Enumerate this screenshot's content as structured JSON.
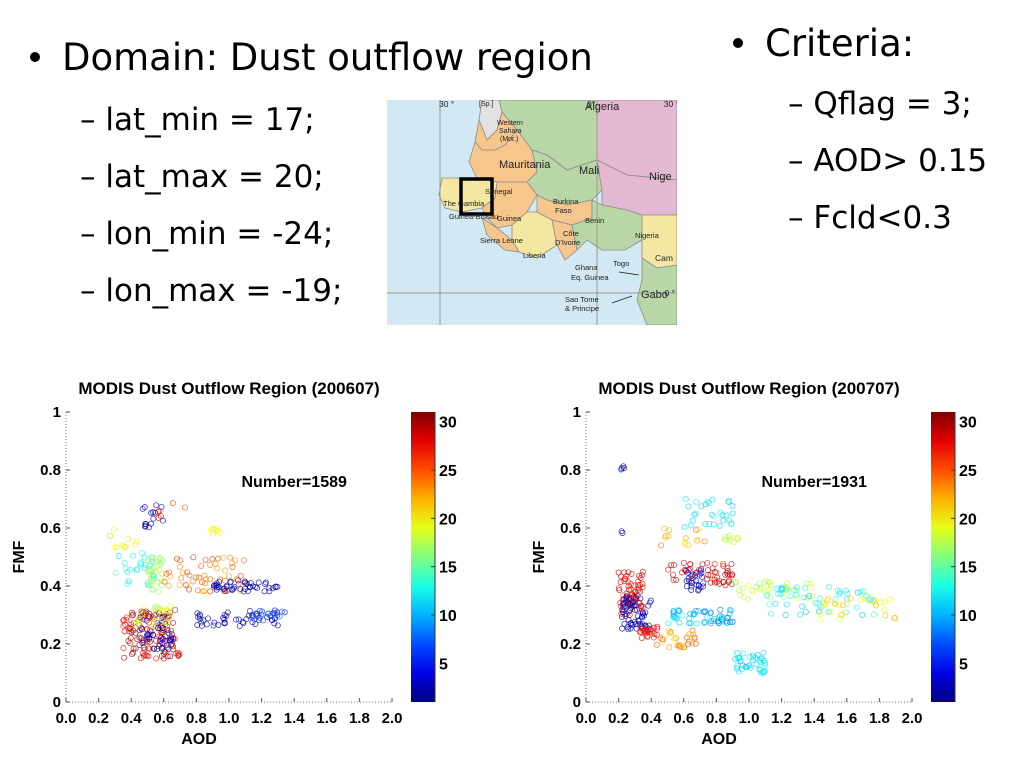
{
  "slide": {
    "domain_header": "Domain: Dust outflow region",
    "domain_items": [
      "lat_min = 17;",
      "lat_max = 20;",
      "lon_min = -24;",
      "lon_max = -19;"
    ],
    "criteria_header": "Criteria:",
    "criteria_items": [
      "Qflag = 3;",
      "AOD> 0.15",
      "Fcld<0.3"
    ],
    "dash": "–"
  },
  "map": {
    "lon_labels": [
      "30 °",
      "0°",
      "30 °",
      "0 °"
    ],
    "labels": [
      "[Sp.]",
      "Algeria",
      "Western",
      "Sahara",
      "(Mor.)",
      "Mauritania",
      "Mali",
      "Nige",
      "Senegal",
      "The Gambia",
      "Guinea-Bissau",
      "Guinea",
      "Burkina",
      "Faso",
      "Benin",
      "Sierra Leone",
      "Côte",
      "D'Ivoire",
      "Nigeria",
      "Liberia",
      "Togo",
      "Cam",
      "Ghana",
      "Eq. Guinea",
      "Gabo",
      "Sao Tome",
      "& Principe"
    ]
  },
  "colors": {
    "ocean": "#d2e8f2",
    "land_green": "#b9d6a6",
    "land_pink": "#e4b8d0",
    "land_orange": "#f6c68c",
    "land_yellow": "#f4e7a2",
    "land_grey": "#e4e2e0",
    "border": "#8c8c8c"
  },
  "chart_data": [
    {
      "type": "scatter",
      "title": "MODIS Dust Outflow Region (200607)",
      "xlabel": "AOD",
      "ylabel": "FMF",
      "xlim": [
        0,
        2
      ],
      "ylim": [
        0,
        1
      ],
      "xticks": [
        "0.0",
        "0.2",
        "0.4",
        "0.6",
        "0.8",
        "1.0",
        "1.2",
        "1.4",
        "1.6",
        "1.8",
        "2.0"
      ],
      "yticks": [
        "0",
        "0.2",
        "0.4",
        "0.6",
        "0.8",
        "1"
      ],
      "annotation": "Number=1589",
      "colorbar": {
        "ticks": [
          "5",
          "10",
          "15",
          "20",
          "25",
          "30"
        ],
        "range": [
          1,
          31
        ]
      },
      "clusters": [
        {
          "x": [
            0.35,
            0.7
          ],
          "y": [
            0.15,
            0.32
          ],
          "c": [
            26,
            31
          ],
          "n": 130
        },
        {
          "x": [
            0.45,
            0.65
          ],
          "y": [
            0.18,
            0.3
          ],
          "c": [
            1,
            5
          ],
          "n": 40
        },
        {
          "x": [
            0.4,
            0.65
          ],
          "y": [
            0.26,
            0.33
          ],
          "c": [
            17,
            20
          ],
          "n": 30
        },
        {
          "x": [
            0.3,
            0.55
          ],
          "y": [
            0.4,
            0.52
          ],
          "c": [
            11,
            14
          ],
          "n": 25
        },
        {
          "x": [
            0.5,
            0.6
          ],
          "y": [
            0.38,
            0.5
          ],
          "c": [
            15,
            19
          ],
          "n": 35
        },
        {
          "x": [
            0.6,
            1.1
          ],
          "y": [
            0.38,
            0.5
          ],
          "c": [
            22,
            26
          ],
          "n": 55
        },
        {
          "x": [
            0.9,
            1.3
          ],
          "y": [
            0.38,
            0.42
          ],
          "c": [
            1,
            4
          ],
          "n": 45
        },
        {
          "x": [
            0.8,
            1.3
          ],
          "y": [
            0.26,
            0.31
          ],
          "c": [
            1,
            4
          ],
          "n": 45
        },
        {
          "x": [
            1.1,
            1.4
          ],
          "y": [
            0.28,
            0.32
          ],
          "c": [
            5,
            8
          ],
          "n": 20
        },
        {
          "x": [
            0.45,
            0.6
          ],
          "y": [
            0.6,
            0.68
          ],
          "c": [
            1,
            5
          ],
          "n": 15
        },
        {
          "x": [
            0.25,
            0.45
          ],
          "y": [
            0.52,
            0.62
          ],
          "c": [
            18,
            22
          ],
          "n": 10
        },
        {
          "x": [
            0.88,
            0.95
          ],
          "y": [
            0.58,
            0.6
          ],
          "c": [
            18,
            20
          ],
          "n": 8
        },
        {
          "x": [
            0.55,
            0.75
          ],
          "y": [
            0.62,
            0.72
          ],
          "c": [
            25,
            29
          ],
          "n": 6
        }
      ]
    },
    {
      "type": "scatter",
      "title": "MODIS Dust Outflow Region (200707)",
      "xlabel": "AOD",
      "ylabel": "FMF",
      "xlim": [
        0,
        2
      ],
      "ylim": [
        0,
        1
      ],
      "xticks": [
        "0.0",
        "0.2",
        "0.4",
        "0.6",
        "0.8",
        "1.0",
        "1.2",
        "1.4",
        "1.6",
        "1.8",
        "2.0"
      ],
      "yticks": [
        "0",
        "0.2",
        "0.4",
        "0.6",
        "0.8",
        "1"
      ],
      "annotation": "Number=1931",
      "colorbar": {
        "ticks": [
          "5",
          "10",
          "15",
          "20",
          "25",
          "30"
        ],
        "range": [
          1,
          31
        ]
      },
      "clusters": [
        {
          "x": [
            0.2,
            0.35
          ],
          "y": [
            0.3,
            0.45
          ],
          "c": [
            26,
            30
          ],
          "n": 70
        },
        {
          "x": [
            0.22,
            0.4
          ],
          "y": [
            0.25,
            0.37
          ],
          "c": [
            1,
            4
          ],
          "n": 60
        },
        {
          "x": [
            0.33,
            0.45
          ],
          "y": [
            0.22,
            0.26
          ],
          "c": [
            26,
            29
          ],
          "n": 25
        },
        {
          "x": [
            0.5,
            0.9
          ],
          "y": [
            0.27,
            0.32
          ],
          "c": [
            8,
            13
          ],
          "n": 60
        },
        {
          "x": [
            0.6,
            0.72
          ],
          "y": [
            0.38,
            0.46
          ],
          "c": [
            1,
            5
          ],
          "n": 30
        },
        {
          "x": [
            0.75,
            0.9
          ],
          "y": [
            0.4,
            0.48
          ],
          "c": [
            26,
            30
          ],
          "n": 30
        },
        {
          "x": [
            0.5,
            0.75
          ],
          "y": [
            0.42,
            0.48
          ],
          "c": [
            27,
            30
          ],
          "n": 20
        },
        {
          "x": [
            0.9,
            1.4
          ],
          "y": [
            0.35,
            0.42
          ],
          "c": [
            16,
            20
          ],
          "n": 40
        },
        {
          "x": [
            1.1,
            1.8
          ],
          "y": [
            0.3,
            0.4
          ],
          "c": [
            10,
            14
          ],
          "n": 50
        },
        {
          "x": [
            1.4,
            1.9
          ],
          "y": [
            0.28,
            0.36
          ],
          "c": [
            18,
            22
          ],
          "n": 30
        },
        {
          "x": [
            0.9,
            1.1
          ],
          "y": [
            0.1,
            0.17
          ],
          "c": [
            10,
            13
          ],
          "n": 40
        },
        {
          "x": [
            0.6,
            0.9
          ],
          "y": [
            0.6,
            0.7
          ],
          "c": [
            10,
            13
          ],
          "n": 30
        },
        {
          "x": [
            0.45,
            0.75
          ],
          "y": [
            0.53,
            0.6
          ],
          "c": [
            20,
            24
          ],
          "n": 15
        },
        {
          "x": [
            0.85,
            0.95
          ],
          "y": [
            0.55,
            0.58
          ],
          "c": [
            17,
            19
          ],
          "n": 10
        },
        {
          "x": [
            0.2,
            0.25
          ],
          "y": [
            0.8,
            0.82
          ],
          "c": [
            1,
            4
          ],
          "n": 4
        },
        {
          "x": [
            0.2,
            0.25
          ],
          "y": [
            0.58,
            0.6
          ],
          "c": [
            1,
            3
          ],
          "n": 2
        },
        {
          "x": [
            0.4,
            0.7
          ],
          "y": [
            0.18,
            0.25
          ],
          "c": [
            20,
            26
          ],
          "n": 30
        }
      ]
    }
  ]
}
